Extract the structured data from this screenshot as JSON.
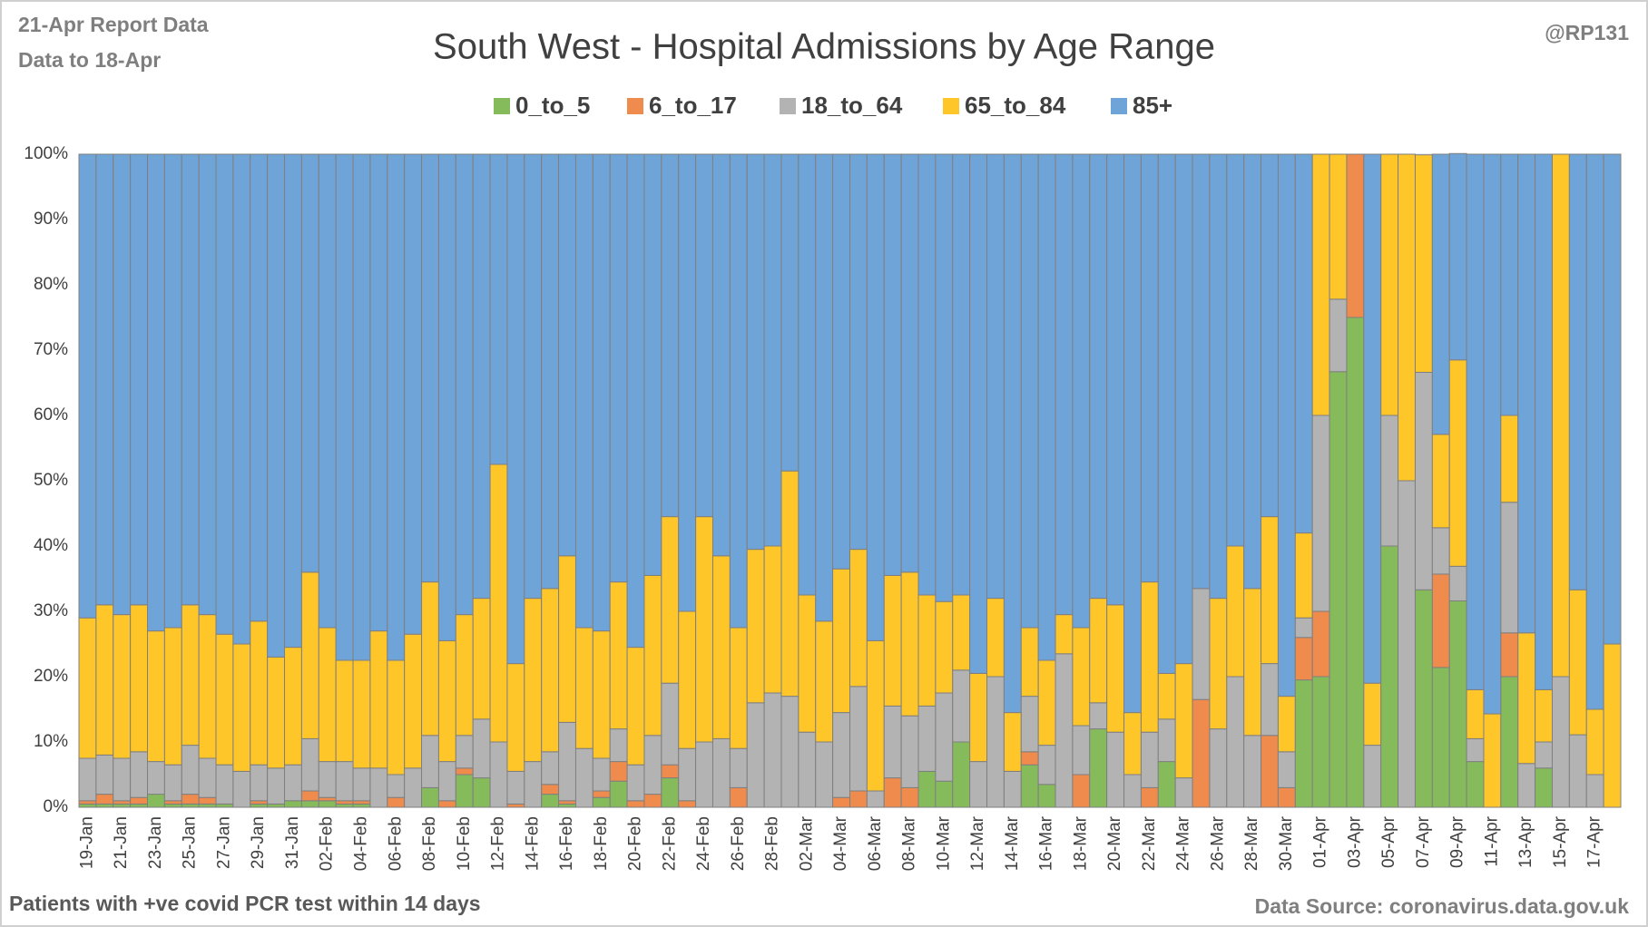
{
  "chart_data": {
    "type": "bar",
    "stacked": true,
    "title": "South West - Hospital Admissions by Age Range",
    "report_note": "21-Apr Report Data",
    "data_note": "Data to 18-Apr",
    "author": "@RP131",
    "footnote": "Patients with  +ve covid PCR test within 14 days",
    "source": "Data Source: coronavirus.data.gov.uk",
    "legend": "top",
    "grid": true,
    "categories": [
      "19-Jan",
      null,
      "21-Jan",
      null,
      "23-Jan",
      null,
      "25-Jan",
      null,
      "27-Jan",
      null,
      "29-Jan",
      null,
      "31-Jan",
      null,
      "02-Feb",
      null,
      "04-Feb",
      null,
      "06-Feb",
      null,
      "08-Feb",
      null,
      "10-Feb",
      null,
      "12-Feb",
      null,
      "14-Feb",
      null,
      "16-Feb",
      null,
      "18-Feb",
      null,
      "20-Feb",
      null,
      "22-Feb",
      null,
      "24-Feb",
      null,
      "26-Feb",
      null,
      "28-Feb",
      null,
      "02-Mar",
      null,
      "04-Mar",
      null,
      "06-Mar",
      null,
      "08-Mar",
      null,
      "10-Mar",
      null,
      "12-Mar",
      null,
      "14-Mar",
      null,
      "16-Mar",
      null,
      "18-Mar",
      null,
      "20-Mar",
      null,
      "22-Mar",
      null,
      "24-Mar",
      null,
      "26-Mar",
      null,
      "28-Mar",
      null,
      "30-Mar",
      null,
      "01-Apr",
      null,
      "03-Apr",
      null,
      "05-Apr",
      null,
      "07-Apr",
      null,
      "09-Apr",
      null,
      "11-Apr",
      null,
      "13-Apr",
      null,
      "15-Apr",
      null,
      "17-Apr",
      null
    ],
    "ylim": [
      0,
      100
    ],
    "yticks": [
      {
        "value": 0,
        "label": "0%"
      },
      {
        "value": 10,
        "label": "10%"
      },
      {
        "value": 20,
        "label": "20%"
      },
      {
        "value": 30,
        "label": "30%"
      },
      {
        "value": 40,
        "label": "40%"
      },
      {
        "value": 50,
        "label": "50%"
      },
      {
        "value": 60,
        "label": "60%"
      },
      {
        "value": 70,
        "label": "70%"
      },
      {
        "value": 80,
        "label": "80%"
      },
      {
        "value": 90,
        "label": "90%"
      },
      {
        "value": 100,
        "label": "100%"
      }
    ],
    "series": [
      {
        "name": "0_to_5",
        "color": "#86bb5c",
        "values": [
          0.5,
          0.5,
          0.5,
          0.5,
          2,
          0.5,
          0.5,
          0.5,
          0.5,
          0,
          0.5,
          0.5,
          1,
          1,
          1,
          0.5,
          0.5,
          0,
          0,
          0,
          3,
          0,
          5,
          4.5,
          0,
          0,
          0,
          2,
          0.5,
          0,
          1.5,
          4,
          0,
          0,
          4.5,
          0,
          0,
          0,
          0,
          0,
          0,
          0,
          0,
          0,
          0,
          0,
          0,
          0,
          0,
          5.5,
          4,
          10,
          0,
          0,
          0,
          6.5,
          3.5,
          0,
          0,
          12,
          0,
          0,
          0,
          7,
          0,
          0,
          0,
          0,
          0,
          0,
          0,
          19.5,
          20,
          66.7,
          75,
          0,
          40,
          0,
          33.3,
          21.4,
          31.6,
          7,
          0,
          20,
          0,
          6,
          0,
          0,
          0,
          0
        ]
      },
      {
        "name": "6_to_17",
        "color": "#ef8b4d",
        "values": [
          0.5,
          1.5,
          0.5,
          1,
          0,
          0.5,
          1.5,
          1,
          0,
          0,
          0.5,
          0,
          0,
          1.5,
          0.5,
          0.5,
          0.5,
          0,
          1.5,
          0,
          0,
          1,
          1,
          0,
          0,
          0.5,
          0,
          1.5,
          0.5,
          0,
          1,
          3,
          1,
          2,
          2,
          1,
          0,
          0,
          3,
          0,
          0,
          0,
          0,
          0,
          1.5,
          2.5,
          0,
          4.5,
          3,
          0,
          0,
          0,
          0,
          0,
          0,
          2,
          0,
          0,
          5,
          0,
          0,
          0,
          3,
          0,
          0,
          16.5,
          0,
          0,
          0,
          11,
          3,
          6.5,
          10,
          0,
          25,
          0,
          0,
          0,
          0,
          14.3,
          0,
          0,
          0,
          6.7,
          0,
          0,
          0,
          0,
          0,
          0
        ]
      },
      {
        "name": "18_to_64",
        "color": "#b3b3b3",
        "values": [
          6.5,
          6,
          6.5,
          7,
          5,
          5.5,
          7.5,
          6,
          6,
          5.5,
          5.5,
          5.5,
          5.5,
          8,
          5.5,
          6,
          5,
          6,
          3.5,
          6,
          8,
          6,
          5,
          9,
          10,
          5,
          7,
          5,
          12,
          9,
          5,
          5,
          5.5,
          9,
          12.5,
          8,
          10,
          10.5,
          6,
          16,
          17.5,
          17,
          11.5,
          10,
          13,
          16,
          2.5,
          11,
          11,
          10,
          13.5,
          11,
          7,
          20,
          5.5,
          8.5,
          6,
          23.5,
          7.5,
          4,
          11.5,
          5,
          8.5,
          6.5,
          4.5,
          17,
          12,
          20,
          11,
          11,
          5.5,
          3,
          30,
          11.1,
          0,
          9.5,
          20,
          50,
          33.3,
          7.1,
          5.3,
          3.5,
          0,
          20,
          6.7,
          4,
          20,
          11.1,
          5,
          0
        ]
      },
      {
        "name": "65_to_84",
        "color": "#ffc629",
        "values": [
          21.5,
          23,
          22,
          22.5,
          20,
          21,
          21.5,
          22,
          20,
          19.5,
          22,
          17,
          18,
          25.5,
          20.5,
          15.5,
          16.5,
          21,
          17.5,
          20.5,
          23.5,
          18.5,
          18.5,
          18.5,
          42.5,
          16.5,
          25,
          25,
          25.5,
          18.5,
          19.5,
          22.5,
          18,
          24.5,
          25.5,
          21,
          34.5,
          28,
          18.5,
          23.5,
          22.5,
          34.5,
          21,
          18.5,
          22,
          21,
          23,
          20,
          22,
          17,
          14,
          11.5,
          13.5,
          12,
          9,
          10.5,
          13,
          6,
          15,
          16,
          19.5,
          9.5,
          23,
          7,
          17.5,
          0,
          20,
          20,
          22.5,
          22.5,
          8.5,
          13,
          40,
          22.2,
          0,
          9.5,
          40,
          50,
          33.3,
          14.3,
          31.6,
          7.5,
          14.3,
          13.3,
          20,
          8,
          80,
          22.2,
          10,
          25
        ]
      },
      {
        "name": "85+",
        "color": "#6fa4d9",
        "values": [
          71,
          69,
          70.5,
          69,
          73,
          72.5,
          69,
          70.5,
          73.5,
          75,
          71.5,
          77,
          75.5,
          64,
          72.5,
          77.5,
          77.5,
          73,
          77.5,
          73.5,
          65.5,
          74.5,
          70.5,
          68,
          47.5,
          78,
          68,
          66.5,
          61.5,
          72.5,
          73,
          65.5,
          75.5,
          64.5,
          55.5,
          70,
          55.5,
          61.5,
          72.5,
          60.5,
          60,
          48.5,
          67.5,
          71.5,
          63.5,
          60.5,
          74.5,
          64.5,
          64,
          67.5,
          68.5,
          67.5,
          79.5,
          68,
          85.5,
          72.5,
          77.5,
          70.5,
          72.5,
          68,
          69,
          85.5,
          65.5,
          79.5,
          78,
          66.5,
          68,
          60,
          66.5,
          55.5,
          83,
          58,
          0,
          0,
          0,
          81,
          0,
          0,
          0,
          42.9,
          31.6,
          82,
          85.7,
          40,
          73.3,
          82,
          0,
          66.7,
          85,
          75
        ]
      }
    ]
  }
}
